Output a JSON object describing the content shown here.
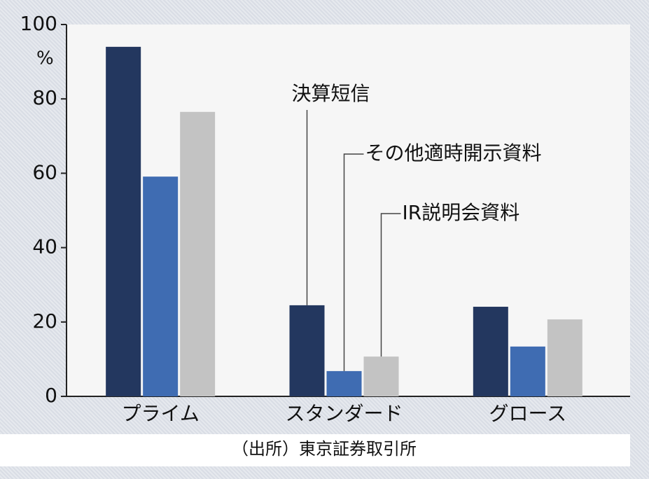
{
  "chart_data": {
    "type": "bar",
    "y_unit": "%",
    "categories": [
      "プライム",
      "スタンダード",
      "グロース"
    ],
    "series": [
      {
        "name": "決算短信",
        "color": "#23375f",
        "values": [
          94.0,
          24.5,
          24.1
        ]
      },
      {
        "name": "その他適時開示資料",
        "color": "#3f6cb2",
        "values": [
          59.1,
          6.8,
          13.4
        ]
      },
      {
        "name": "IR説明会資料",
        "color": "#c3c3c3",
        "values": [
          76.5,
          10.7,
          20.7
        ]
      }
    ],
    "ylim": [
      0,
      100
    ],
    "yticks": [
      0,
      20,
      40,
      60,
      80,
      100
    ],
    "source": "（出所）東京証券取引所"
  }
}
